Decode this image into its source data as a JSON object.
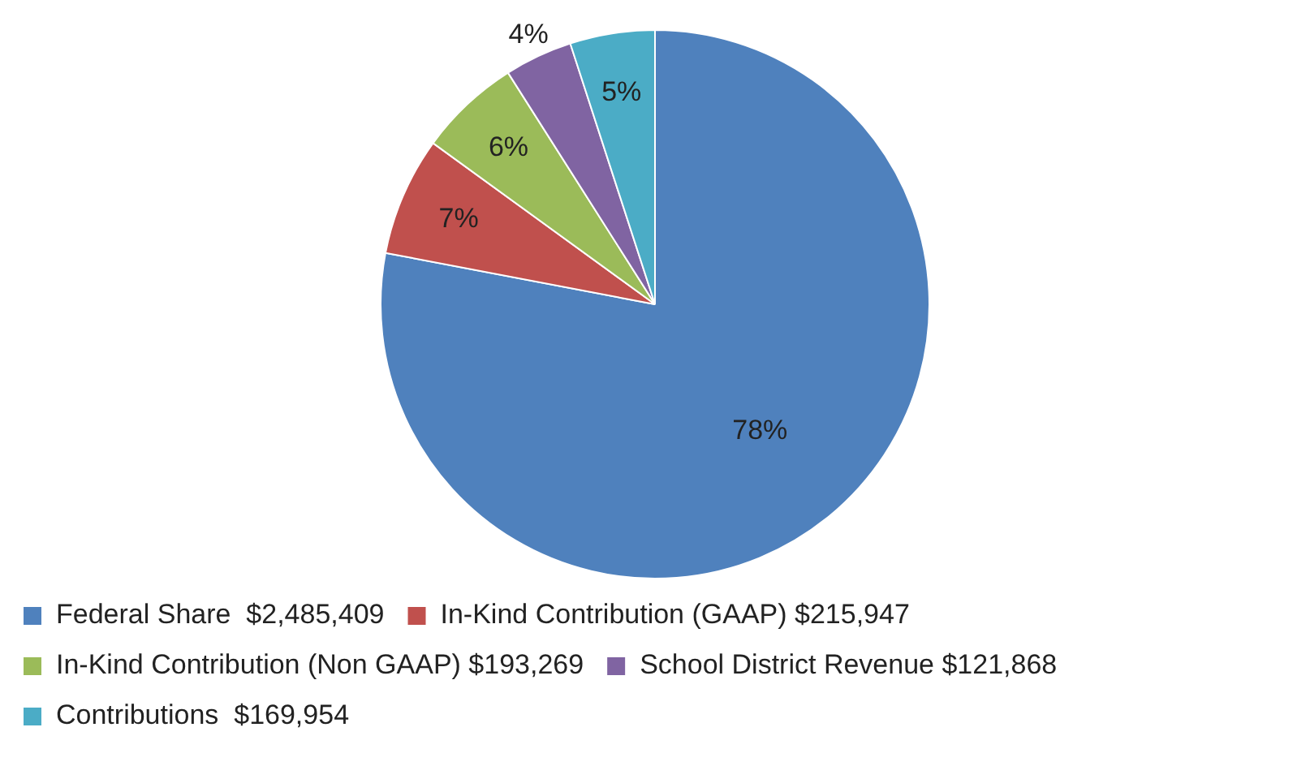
{
  "chart_data": {
    "type": "pie",
    "categories": [
      "Federal Share  $2,485,409",
      "In-Kind Contribution (GAAP) $215,947",
      "In-Kind Contribution (Non GAAP) $193,269",
      "School District Revenue $121,868",
      "Contributions  $169,954"
    ],
    "values": [
      78,
      7,
      6,
      4,
      5
    ],
    "colors": [
      "#4f81bd",
      "#c0504d",
      "#9bbb59",
      "#8064a2",
      "#4bacc6"
    ],
    "value_labels": [
      "78%",
      "7%",
      "6%",
      "4%",
      "5%"
    ],
    "legend": "bottom"
  }
}
